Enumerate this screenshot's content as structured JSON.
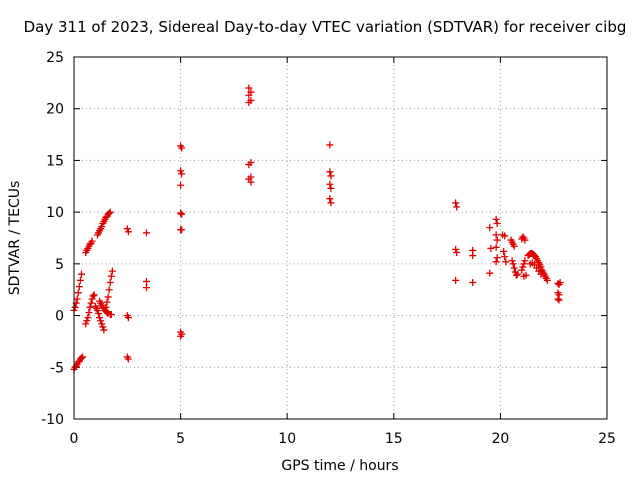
{
  "chart_data": {
    "type": "scatter",
    "title": "Day 311 of 2023, Sidereal Day-to-day VTEC variation (SDTVAR) for receiver cibg",
    "xlabel": "GPS time / hours",
    "ylabel": "SDTVAR / TECUs",
    "xlim": [
      0,
      25
    ],
    "ylim": [
      -10,
      25
    ],
    "x_ticks": [
      "0",
      "5",
      "10",
      "15",
      "20",
      "25"
    ],
    "y_ticks": [
      "-10",
      "-5",
      "0",
      "5",
      "10",
      "15",
      "20",
      "25"
    ],
    "grid": true,
    "marker": "plus",
    "color": "#e00000",
    "series": [
      {
        "name": "SDTVAR",
        "points": [
          [
            0.0,
            -5.2
          ],
          [
            0.05,
            -5.0
          ],
          [
            0.1,
            -4.9
          ],
          [
            0.15,
            -4.7
          ],
          [
            0.2,
            -4.5
          ],
          [
            0.25,
            -4.4
          ],
          [
            0.3,
            -4.2
          ],
          [
            0.35,
            -4.1
          ],
          [
            0.4,
            -4.0
          ],
          [
            0.0,
            0.5
          ],
          [
            0.05,
            0.8
          ],
          [
            0.1,
            1.2
          ],
          [
            0.15,
            1.6
          ],
          [
            0.2,
            2.2
          ],
          [
            0.25,
            2.8
          ],
          [
            0.3,
            3.4
          ],
          [
            0.35,
            4.0
          ],
          [
            0.55,
            -0.8
          ],
          [
            0.6,
            -0.5
          ],
          [
            0.65,
            -0.2
          ],
          [
            0.7,
            0.3
          ],
          [
            0.75,
            0.8
          ],
          [
            0.8,
            1.2
          ],
          [
            0.85,
            1.6
          ],
          [
            0.9,
            1.9
          ],
          [
            0.95,
            2.0
          ],
          [
            0.55,
            6.1
          ],
          [
            0.6,
            6.3
          ],
          [
            0.65,
            6.5
          ],
          [
            0.7,
            6.7
          ],
          [
            0.75,
            6.9
          ],
          [
            0.8,
            7.0
          ],
          [
            0.85,
            7.2
          ],
          [
            1.0,
            0.9
          ],
          [
            1.05,
            0.7
          ],
          [
            1.1,
            0.5
          ],
          [
            1.15,
            0.2
          ],
          [
            1.2,
            -0.2
          ],
          [
            1.25,
            -0.5
          ],
          [
            1.3,
            -0.8
          ],
          [
            1.35,
            -1.1
          ],
          [
            1.4,
            -1.4
          ],
          [
            1.1,
            7.8
          ],
          [
            1.15,
            8.0
          ],
          [
            1.2,
            8.2
          ],
          [
            1.25,
            8.4
          ],
          [
            1.3,
            8.6
          ],
          [
            1.35,
            8.9
          ],
          [
            1.4,
            9.1
          ],
          [
            1.45,
            9.3
          ],
          [
            1.5,
            9.5
          ],
          [
            1.55,
            9.6
          ],
          [
            1.6,
            9.8
          ],
          [
            1.65,
            9.9
          ],
          [
            1.7,
            10.0
          ],
          [
            1.2,
            1.4
          ],
          [
            1.25,
            1.2
          ],
          [
            1.3,
            1.0
          ],
          [
            1.35,
            0.8
          ],
          [
            1.4,
            0.7
          ],
          [
            1.45,
            0.5
          ],
          [
            1.5,
            0.4
          ],
          [
            1.55,
            0.3
          ],
          [
            1.6,
            0.2
          ],
          [
            1.7,
            0.1
          ],
          [
            1.75,
            0.1
          ],
          [
            1.5,
            0.8
          ],
          [
            1.55,
            1.3
          ],
          [
            1.6,
            1.8
          ],
          [
            1.65,
            2.5
          ],
          [
            1.7,
            3.2
          ],
          [
            1.75,
            3.8
          ],
          [
            1.8,
            4.3
          ],
          [
            2.5,
            8.4
          ],
          [
            2.55,
            8.1
          ],
          [
            2.5,
            0.0
          ],
          [
            2.55,
            -0.2
          ],
          [
            2.5,
            -4.0
          ],
          [
            2.55,
            -4.2
          ],
          [
            3.4,
            8.0
          ],
          [
            3.4,
            3.3
          ],
          [
            3.4,
            2.7
          ],
          [
            5.0,
            16.4
          ],
          [
            5.05,
            16.2
          ],
          [
            5.0,
            14.0
          ],
          [
            5.05,
            13.7
          ],
          [
            5.0,
            12.6
          ],
          [
            5.0,
            9.9
          ],
          [
            5.05,
            9.8
          ],
          [
            5.0,
            8.3
          ],
          [
            5.05,
            8.3
          ],
          [
            5.0,
            -1.6
          ],
          [
            5.05,
            -1.8
          ],
          [
            5.0,
            -2.0
          ],
          [
            8.2,
            22.0
          ],
          [
            8.3,
            21.6
          ],
          [
            8.2,
            21.3
          ],
          [
            8.3,
            20.8
          ],
          [
            8.2,
            20.6
          ],
          [
            8.3,
            14.8
          ],
          [
            8.2,
            14.6
          ],
          [
            8.3,
            13.4
          ],
          [
            8.2,
            13.2
          ],
          [
            8.3,
            12.9
          ],
          [
            12.0,
            16.5
          ],
          [
            12.0,
            13.9
          ],
          [
            12.05,
            13.5
          ],
          [
            12.0,
            12.7
          ],
          [
            12.05,
            12.3
          ],
          [
            12.0,
            11.3
          ],
          [
            12.05,
            10.9
          ],
          [
            17.9,
            10.9
          ],
          [
            17.95,
            10.5
          ],
          [
            17.9,
            6.4
          ],
          [
            17.95,
            6.1
          ],
          [
            17.9,
            3.4
          ],
          [
            18.7,
            6.3
          ],
          [
            18.7,
            5.8
          ],
          [
            18.7,
            3.2
          ],
          [
            19.5,
            8.5
          ],
          [
            19.55,
            6.5
          ],
          [
            19.5,
            4.1
          ],
          [
            19.8,
            9.3
          ],
          [
            19.85,
            8.9
          ],
          [
            19.8,
            7.8
          ],
          [
            19.85,
            7.3
          ],
          [
            19.8,
            6.6
          ],
          [
            19.85,
            5.6
          ],
          [
            19.8,
            5.2
          ],
          [
            20.1,
            7.8
          ],
          [
            20.2,
            7.7
          ],
          [
            20.15,
            6.2
          ],
          [
            20.2,
            5.7
          ],
          [
            20.25,
            5.2
          ],
          [
            20.5,
            7.3
          ],
          [
            20.55,
            7.1
          ],
          [
            20.6,
            6.9
          ],
          [
            20.65,
            6.7
          ],
          [
            20.55,
            5.3
          ],
          [
            20.6,
            5.0
          ],
          [
            20.65,
            4.6
          ],
          [
            20.7,
            4.2
          ],
          [
            20.75,
            3.9
          ],
          [
            20.8,
            4.0
          ],
          [
            21.0,
            4.4
          ],
          [
            21.05,
            4.7
          ],
          [
            21.1,
            5.0
          ],
          [
            21.15,
            5.3
          ],
          [
            21.0,
            7.4
          ],
          [
            21.05,
            7.6
          ],
          [
            21.1,
            7.5
          ],
          [
            21.15,
            7.3
          ],
          [
            21.1,
            3.8
          ],
          [
            21.2,
            3.9
          ],
          [
            21.3,
            5.8
          ],
          [
            21.35,
            5.9
          ],
          [
            21.4,
            6.0
          ],
          [
            21.45,
            6.0
          ],
          [
            21.5,
            6.0
          ],
          [
            21.55,
            5.9
          ],
          [
            21.6,
            5.8
          ],
          [
            21.65,
            5.7
          ],
          [
            21.7,
            5.5
          ],
          [
            21.75,
            5.3
          ],
          [
            21.8,
            5.1
          ],
          [
            21.85,
            4.9
          ],
          [
            21.9,
            4.7
          ],
          [
            21.95,
            4.4
          ],
          [
            22.0,
            4.2
          ],
          [
            22.05,
            4.0
          ],
          [
            22.1,
            3.8
          ],
          [
            22.15,
            3.6
          ],
          [
            22.2,
            3.4
          ],
          [
            21.4,
            5.0
          ],
          [
            21.5,
            5.1
          ],
          [
            21.6,
            4.9
          ],
          [
            21.7,
            4.6
          ],
          [
            21.8,
            4.3
          ],
          [
            21.9,
            4.0
          ],
          [
            22.7,
            3.1
          ],
          [
            22.75,
            3.0
          ],
          [
            22.8,
            3.2
          ],
          [
            22.7,
            2.2
          ],
          [
            22.75,
            2.0
          ],
          [
            22.7,
            1.6
          ],
          [
            22.75,
            1.5
          ]
        ]
      }
    ]
  }
}
